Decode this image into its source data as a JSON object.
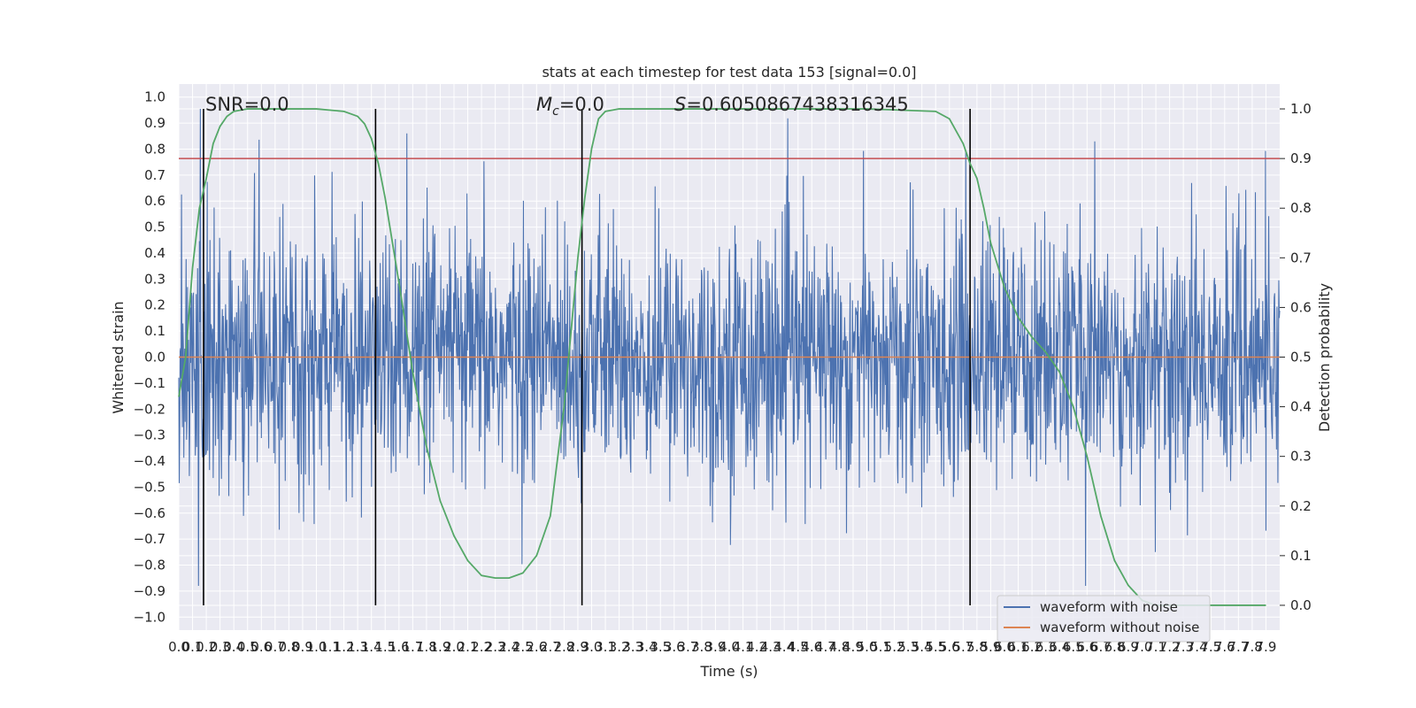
{
  "chart_data": {
    "type": "line",
    "title": "stats at each timestep for test data 153 [signal=0.0]",
    "xlabel": "Time (s)",
    "ylabel": "Whitened strain",
    "y2label": "Detection probability",
    "xlim": [
      0.0,
      8.0
    ],
    "ylim": [
      -1.05,
      1.05
    ],
    "y2lim": [
      -0.05,
      1.05
    ],
    "x_ticks": [
      "0.0",
      "0.1",
      "0.2",
      "0.3",
      "0.4",
      "0.5",
      "0.6",
      "0.7",
      "0.8",
      "0.9",
      "1.0",
      "1.1",
      "1.2",
      "1.3",
      "1.4",
      "1.5",
      "1.6",
      "1.7",
      "1.8",
      "1.9",
      "2.0",
      "2.1",
      "2.2",
      "2.3",
      "2.4",
      "2.5",
      "2.6",
      "2.7",
      "2.8",
      "2.9",
      "3.0",
      "3.1",
      "3.2",
      "3.3",
      "3.4",
      "3.5",
      "3.6",
      "3.7",
      "3.8",
      "3.9",
      "4.0",
      "4.1",
      "4.2",
      "4.3",
      "4.4",
      "4.5",
      "4.6",
      "4.7",
      "4.8",
      "4.9",
      "5.0",
      "5.1",
      "5.2",
      "5.3",
      "5.4",
      "5.5",
      "5.6",
      "5.7",
      "5.8",
      "5.9",
      "6.0",
      "6.1",
      "6.2",
      "6.3",
      "6.4",
      "6.5",
      "6.6",
      "6.7",
      "6.8",
      "6.9",
      "7.0",
      "7.1",
      "7.2",
      "7.3",
      "7.4",
      "7.5",
      "7.6",
      "7.7",
      "7.8",
      "7.9"
    ],
    "y_ticks": [
      "1.0",
      "0.9",
      "0.8",
      "0.7",
      "0.6",
      "0.5",
      "0.4",
      "0.3",
      "0.2",
      "0.1",
      "0.0",
      "−0.1",
      "−0.2",
      "−0.3",
      "−0.4",
      "−0.5",
      "−0.6",
      "−0.7",
      "−0.8",
      "−0.9",
      "−1.0"
    ],
    "y2_ticks": [
      "1.0",
      "0.9",
      "0.8",
      "0.7",
      "0.6",
      "0.5",
      "0.4",
      "0.3",
      "0.2",
      "0.1",
      "0.0"
    ],
    "annotations": {
      "snr": "SNR=0.0",
      "mc_symbol": "M",
      "mc_sub": "c",
      "mc_value": "=0.0",
      "s_symbol": "S",
      "s_value": "=0.6050867438316345"
    },
    "series": [
      {
        "name": "waveform with noise",
        "color": "#4c72b0",
        "note": "dense noise trace, amplitude roughly within [-0.9, 1.0]"
      },
      {
        "name": "waveform without noise",
        "color": "#dd8452",
        "values_x": [
          0.0,
          8.0
        ],
        "values_y": [
          0.0,
          0.0
        ]
      },
      {
        "name": "",
        "color": "#55a868",
        "axis": "right",
        "x": [
          0.0,
          0.05,
          0.1,
          0.15,
          0.2,
          0.25,
          0.3,
          0.35,
          0.4,
          0.5,
          0.6,
          0.8,
          1.0,
          1.2,
          1.3,
          1.35,
          1.4,
          1.45,
          1.5,
          1.6,
          1.7,
          1.8,
          1.9,
          2.0,
          2.1,
          2.2,
          2.3,
          2.4,
          2.5,
          2.6,
          2.7,
          2.8,
          2.85,
          2.9,
          2.95,
          3.0,
          3.05,
          3.1,
          3.2,
          3.4,
          4.0,
          5.0,
          5.5,
          5.6,
          5.7,
          5.75,
          5.8,
          5.85,
          5.9,
          6.0,
          6.1,
          6.2,
          6.3,
          6.4,
          6.5,
          6.6,
          6.7,
          6.8,
          6.9,
          7.0,
          7.1,
          7.2,
          7.3,
          7.5,
          7.7,
          7.9
        ],
        "values": [
          0.42,
          0.5,
          0.68,
          0.8,
          0.86,
          0.93,
          0.965,
          0.985,
          0.995,
          1.0,
          1.0,
          1.0,
          1.0,
          0.995,
          0.985,
          0.97,
          0.94,
          0.89,
          0.82,
          0.65,
          0.47,
          0.32,
          0.21,
          0.14,
          0.09,
          0.06,
          0.055,
          0.055,
          0.065,
          0.1,
          0.18,
          0.4,
          0.55,
          0.7,
          0.82,
          0.92,
          0.98,
          0.995,
          1.0,
          1.0,
          1.0,
          1.0,
          0.995,
          0.98,
          0.93,
          0.89,
          0.86,
          0.8,
          0.73,
          0.64,
          0.58,
          0.54,
          0.51,
          0.47,
          0.4,
          0.3,
          0.18,
          0.09,
          0.04,
          0.01,
          0.0,
          0.0,
          0.0,
          0.0,
          0.0,
          0.0
        ]
      }
    ],
    "threshold_line": {
      "y2": 0.9,
      "color": "#c44e52"
    },
    "vertical_markers": [
      0.18,
      1.43,
      2.93,
      5.75
    ],
    "legend": {
      "position": "bottom-right",
      "entries": [
        {
          "label": "waveform with noise",
          "color": "#4c72b0"
        },
        {
          "label": "waveform without noise",
          "color": "#dd8452"
        }
      ]
    },
    "grid": true,
    "background": "#eaeaf2"
  }
}
